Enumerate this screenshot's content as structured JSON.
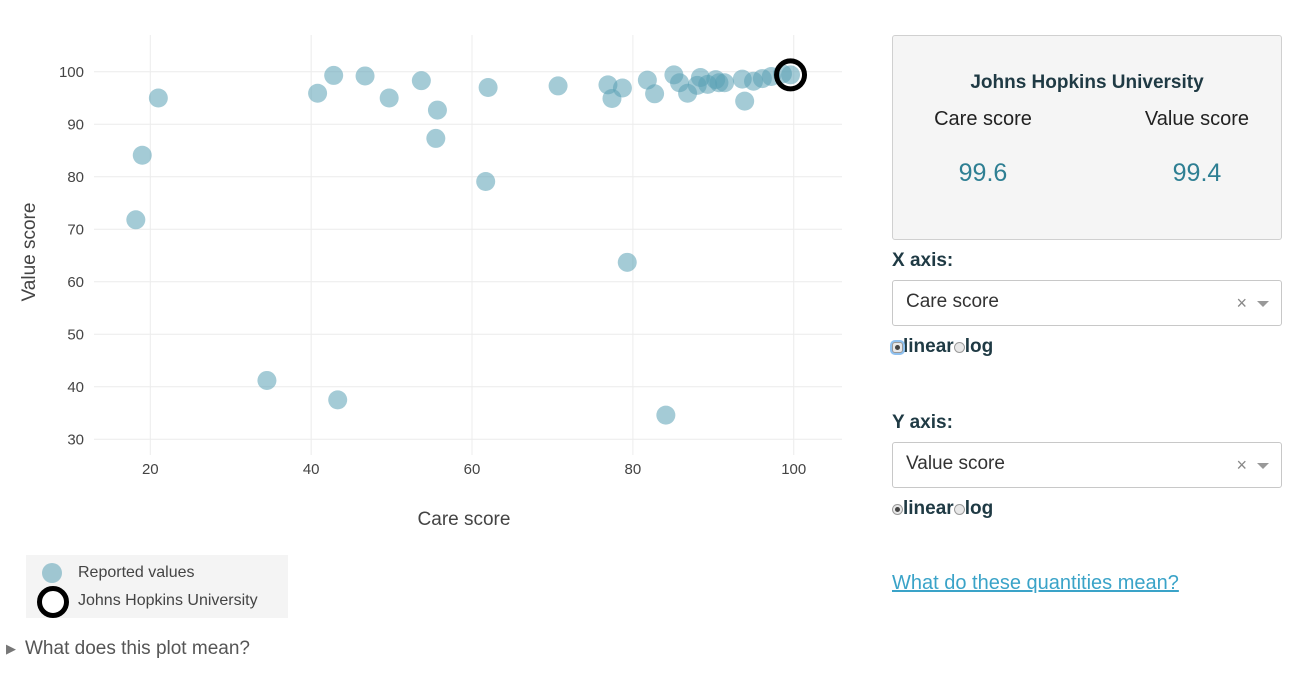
{
  "chart_data": {
    "type": "scatter",
    "xlabel": "Care score",
    "ylabel": "Value score",
    "xlim": [
      13,
      106
    ],
    "ylim": [
      27,
      107
    ],
    "x_ticks": [
      20,
      40,
      60,
      80,
      100
    ],
    "y_ticks": [
      30,
      40,
      50,
      60,
      70,
      80,
      90,
      100
    ],
    "grid": true,
    "series": [
      {
        "name": "Reported values",
        "color": "#5aa0b4",
        "points": [
          [
            18.2,
            71.8
          ],
          [
            19.0,
            84.1
          ],
          [
            21.0,
            95.0
          ],
          [
            34.5,
            41.2
          ],
          [
            40.8,
            95.9
          ],
          [
            42.8,
            99.3
          ],
          [
            43.3,
            37.5
          ],
          [
            46.7,
            99.2
          ],
          [
            49.7,
            95.0
          ],
          [
            53.7,
            98.3
          ],
          [
            55.5,
            87.3
          ],
          [
            55.7,
            92.7
          ],
          [
            61.7,
            79.1
          ],
          [
            62.0,
            97.0
          ],
          [
            70.7,
            97.3
          ],
          [
            76.9,
            97.5
          ],
          [
            77.4,
            94.9
          ],
          [
            78.7,
            96.9
          ],
          [
            79.3,
            63.7
          ],
          [
            81.8,
            98.4
          ],
          [
            82.7,
            95.8
          ],
          [
            84.1,
            34.6
          ],
          [
            85.1,
            99.4
          ],
          [
            85.8,
            97.9
          ],
          [
            86.8,
            95.9
          ],
          [
            88.0,
            97.4
          ],
          [
            88.4,
            98.9
          ],
          [
            89.3,
            97.6
          ],
          [
            90.3,
            98.5
          ],
          [
            90.7,
            97.9
          ],
          [
            91.4,
            97.9
          ],
          [
            93.6,
            98.6
          ],
          [
            93.9,
            94.4
          ],
          [
            95.0,
            98.2
          ],
          [
            96.1,
            98.7
          ],
          [
            97.2,
            99.1
          ],
          [
            98.6,
            99.6
          ],
          [
            99.6,
            99.4
          ]
        ]
      },
      {
        "name": "Johns Hopkins University",
        "color": "#000000",
        "points": [
          [
            99.6,
            99.4
          ]
        ]
      }
    ]
  },
  "legend": {
    "items": [
      "Reported values",
      "Johns Hopkins University"
    ]
  },
  "details_label": "What does this plot mean?",
  "info": {
    "title": "Johns Hopkins University",
    "care_label": "Care score",
    "value_label": "Value score",
    "care_value": "99.6",
    "value_value": "99.4"
  },
  "controls": {
    "x_axis": {
      "label": "X axis:",
      "selected": "Care score",
      "clear": "×",
      "scale_options": [
        "linear",
        "log"
      ],
      "scale": "linear"
    },
    "y_axis": {
      "label": "Y axis:",
      "selected": "Value score",
      "clear": "×",
      "scale_options": [
        "linear",
        "log"
      ],
      "scale": "linear"
    }
  },
  "help_link": "What do these quantities mean?"
}
